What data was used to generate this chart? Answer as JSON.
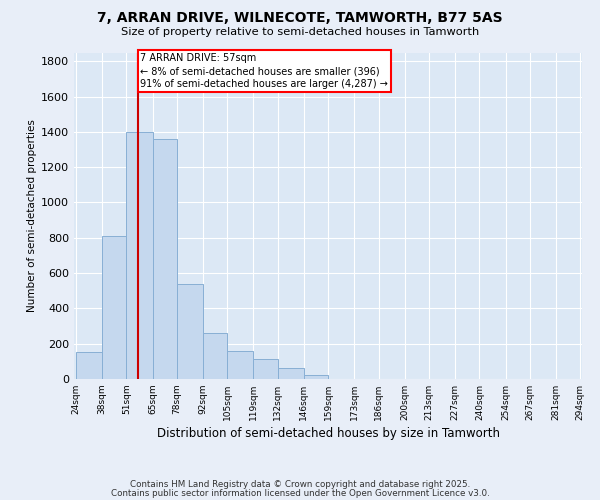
{
  "title": "7, ARRAN DRIVE, WILNECOTE, TAMWORTH, B77 5AS",
  "subtitle": "Size of property relative to semi-detached houses in Tamworth",
  "xlabel": "Distribution of semi-detached houses by size in Tamworth",
  "ylabel": "Number of semi-detached properties",
  "property_size": 57,
  "property_label": "7 ARRAN DRIVE: 57sqm",
  "annotation_line1": "← 8% of semi-detached houses are smaller (396)",
  "annotation_line2": "91% of semi-detached houses are larger (4,287) →",
  "bar_color": "#c5d8ee",
  "bar_edge_color": "#88afd4",
  "marker_color": "#cc0000",
  "bins": [
    24,
    38,
    51,
    65,
    78,
    92,
    105,
    119,
    132,
    146,
    159,
    173,
    186,
    200,
    213,
    227,
    240,
    254,
    267,
    281,
    294
  ],
  "values": [
    150,
    810,
    1400,
    1360,
    540,
    260,
    160,
    110,
    60,
    20,
    0,
    0,
    0,
    0,
    0,
    0,
    0,
    0,
    0,
    0
  ],
  "ylim": [
    0,
    1850
  ],
  "yticks": [
    0,
    200,
    400,
    600,
    800,
    1000,
    1200,
    1400,
    1600,
    1800
  ],
  "footnote1": "Contains HM Land Registry data © Crown copyright and database right 2025.",
  "footnote2": "Contains public sector information licensed under the Open Government Licence v3.0.",
  "background_color": "#e8eef8",
  "plot_background": "#dce8f5"
}
